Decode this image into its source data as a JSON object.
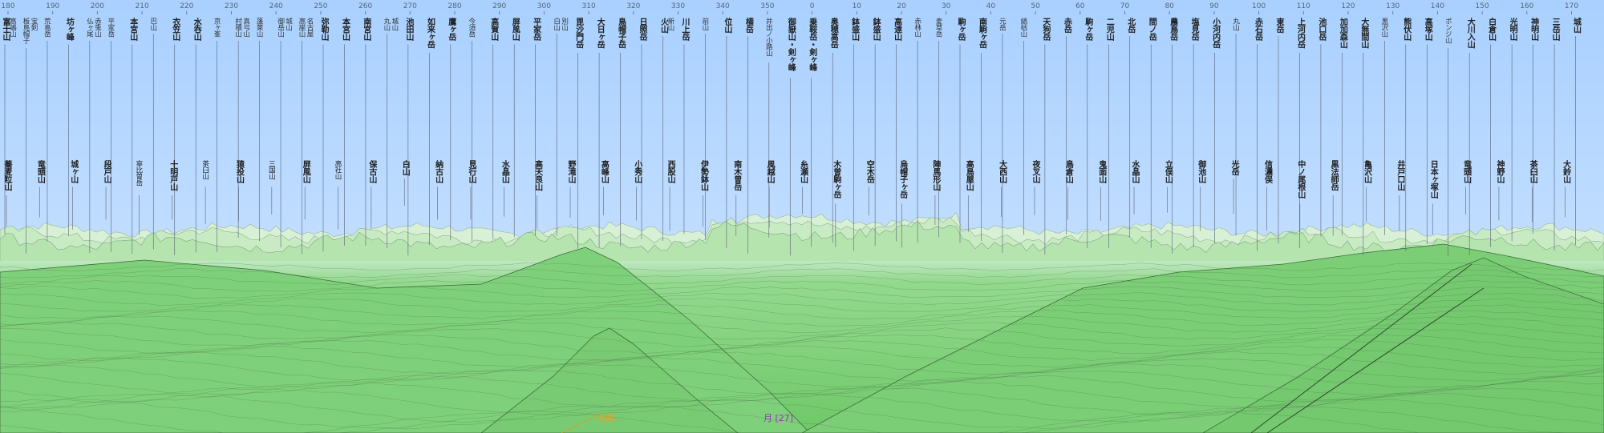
{
  "compass": {
    "ticks": [
      "180",
      "190",
      "200",
      "210",
      "220",
      "230",
      "240",
      "250",
      "260",
      "270",
      "280",
      "290",
      "300",
      "310",
      "320",
      "330",
      "340",
      "350",
      "0",
      "10",
      "20",
      "30",
      "40",
      "50",
      "60",
      "70",
      "80",
      "90",
      "100",
      "110",
      "120",
      "130",
      "140",
      "150",
      "160",
      "170"
    ]
  },
  "peaks_upper": [
    {
      "name": "富士山",
      "sub": "高嶋山",
      "bold": true
    },
    {
      "name": "板鳥帽子",
      "sub": "宝剣",
      "bold": false
    },
    {
      "name": "荒島岳",
      "sub": "",
      "bold": false
    },
    {
      "name": "坊ヶ峰",
      "sub": "",
      "bold": true
    },
    {
      "name": "仏ヶ尾",
      "sub": "赤兎山",
      "bold": false
    },
    {
      "name": "平家岳",
      "sub": "",
      "bold": false
    },
    {
      "name": "本宮山",
      "sub": "",
      "bold": true
    },
    {
      "name": "巴山",
      "sub": "",
      "bold": false
    },
    {
      "name": "衣笠山",
      "sub": "",
      "bold": true
    },
    {
      "name": "水呑山",
      "sub": "",
      "bold": true
    },
    {
      "name": "京ヶ峯",
      "sub": "",
      "bold": false
    },
    {
      "name": "村積山",
      "sub": "真弓山",
      "bold": false
    },
    {
      "name": "蓬萊山",
      "sub": "",
      "bold": false
    },
    {
      "name": "御岳山",
      "sub": "城山",
      "bold": false
    },
    {
      "name": "高座山",
      "sub": "名古屋",
      "bold": false
    },
    {
      "name": "弥勒山",
      "sub": "",
      "bold": true
    },
    {
      "name": "本宮山",
      "sub": "",
      "bold": true
    },
    {
      "name": "南宮山",
      "sub": "",
      "bold": true
    },
    {
      "name": "丸山",
      "sub": "城山",
      "bold": false
    },
    {
      "name": "池田山",
      "sub": "",
      "bold": true
    },
    {
      "name": "如来ヶ岳",
      "sub": "",
      "bold": true
    },
    {
      "name": "鷹ヶ岳",
      "sub": "",
      "bold": true
    },
    {
      "name": "今須岳",
      "sub": "",
      "bold": false
    },
    {
      "name": "高賀山",
      "sub": "",
      "bold": true
    },
    {
      "name": "屏風山",
      "sub": "",
      "bold": true
    },
    {
      "name": "平家岳",
      "sub": "",
      "bold": true
    },
    {
      "name": "白山",
      "sub": "別山",
      "bold": false
    },
    {
      "name": "毘沙門岳",
      "sub": "",
      "bold": true
    },
    {
      "name": "大日ヶ岳",
      "sub": "",
      "bold": true
    },
    {
      "name": "鳥帽子岳",
      "sub": "",
      "bold": true
    },
    {
      "name": "日照岳",
      "sub": "",
      "bold": true
    },
    {
      "name": "火山",
      "sub": "新山",
      "bold": true
    },
    {
      "name": "川上岳",
      "sub": "",
      "bold": true
    },
    {
      "name": "前山",
      "sub": "",
      "bold": false
    },
    {
      "name": "位山",
      "sub": "",
      "bold": true
    },
    {
      "name": "横岳",
      "sub": "",
      "bold": true
    },
    {
      "name": "井出ノ小路山",
      "sub": "",
      "bold": false
    },
    {
      "name": "御嶽山・剣ヶ峰",
      "sub": "",
      "bold": true
    },
    {
      "name": "乗鞍岳・剣ヶ峰",
      "sub": "",
      "bold": true
    },
    {
      "name": "奥穂高岳",
      "sub": "",
      "bold": true
    },
    {
      "name": "鉢盛山",
      "sub": "",
      "bold": true
    },
    {
      "name": "鉢盛山",
      "sub": "",
      "bold": true
    },
    {
      "name": "高遠山",
      "sub": "",
      "bold": true
    },
    {
      "name": "赤林山",
      "sub": "",
      "bold": false
    },
    {
      "name": "麦草岳",
      "sub": "",
      "bold": false
    },
    {
      "name": "駒ヶ岳",
      "sub": "",
      "bold": true
    },
    {
      "name": "南駒ヶ岳",
      "sub": "",
      "bold": true
    },
    {
      "name": "元岳",
      "sub": "",
      "bold": false
    },
    {
      "name": "縞枯山",
      "sub": "",
      "bold": false
    },
    {
      "name": "天狗岳",
      "sub": "",
      "bold": true
    },
    {
      "name": "赤岳",
      "sub": "",
      "bold": true
    },
    {
      "name": "駒ヶ岳",
      "sub": "",
      "bold": true
    },
    {
      "name": "二児山",
      "sub": "",
      "bold": true
    },
    {
      "name": "北岳",
      "sub": "",
      "bold": true
    },
    {
      "name": "間ノ岳",
      "sub": "",
      "bold": true
    },
    {
      "name": "農鳥岳",
      "sub": "",
      "bold": true
    },
    {
      "name": "塩見岳",
      "sub": "",
      "bold": true
    },
    {
      "name": "小河内岳",
      "sub": "",
      "bold": true
    },
    {
      "name": "丸山",
      "sub": "",
      "bold": false
    },
    {
      "name": "赤石岳",
      "sub": "",
      "bold": true
    },
    {
      "name": "東岳",
      "sub": "",
      "bold": true
    },
    {
      "name": "上河内岳",
      "sub": "",
      "bold": true
    },
    {
      "name": "池口岳",
      "sub": "",
      "bold": true
    },
    {
      "name": "加加森山",
      "sub": "",
      "bold": true
    },
    {
      "name": "大無間山",
      "sub": "",
      "bold": true
    },
    {
      "name": "黒沢山",
      "sub": "",
      "bold": false
    },
    {
      "name": "熊伏山",
      "sub": "",
      "bold": true
    },
    {
      "name": "高塚山",
      "sub": "",
      "bold": true
    },
    {
      "name": "ボンジ山",
      "sub": "",
      "bold": false
    },
    {
      "name": "大川入山",
      "sub": "",
      "bold": true
    },
    {
      "name": "白倉山",
      "sub": "",
      "bold": true
    },
    {
      "name": "光明山",
      "sub": "",
      "bold": true
    },
    {
      "name": "神明山",
      "sub": "",
      "bold": true
    },
    {
      "name": "三岳山",
      "sub": "",
      "bold": true
    },
    {
      "name": "城山",
      "sub": "",
      "bold": true
    }
  ],
  "peaks_lower": [
    {
      "name": "蕎麦粒山",
      "bold": true
    },
    {
      "name": "竜頭山",
      "bold": true
    },
    {
      "name": "城ヶ山",
      "bold": true
    },
    {
      "name": "段戸山",
      "bold": true
    },
    {
      "name": "寧比曽岳",
      "bold": false
    },
    {
      "name": "十明戸山",
      "bold": true
    },
    {
      "name": "茶臼山",
      "bold": false
    },
    {
      "name": "猿投山",
      "bold": true
    },
    {
      "name": "三国山",
      "bold": false
    },
    {
      "name": "屏風山",
      "bold": true
    },
    {
      "name": "高社山",
      "bold": false
    },
    {
      "name": "保古山",
      "bold": true
    },
    {
      "name": "白山",
      "bold": true
    },
    {
      "name": "納古山",
      "bold": true
    },
    {
      "name": "見行山",
      "bold": true
    },
    {
      "name": "水晶山",
      "bold": true
    },
    {
      "name": "高天良山",
      "bold": true
    },
    {
      "name": "野滝山",
      "bold": true
    },
    {
      "name": "高峰山",
      "bold": true
    },
    {
      "name": "小秀山",
      "bold": true
    },
    {
      "name": "西股山",
      "bold": true
    },
    {
      "name": "伊勢鉢山",
      "bold": true
    },
    {
      "name": "南木曽岳",
      "bold": true
    },
    {
      "name": "風越山",
      "bold": true
    },
    {
      "name": "糸瀬山",
      "bold": true
    },
    {
      "name": "木曽駒ヶ岳",
      "bold": true
    },
    {
      "name": "空木岳",
      "bold": true
    },
    {
      "name": "烏帽子ヶ岳",
      "bold": true
    },
    {
      "name": "陣馬形山",
      "bold": true
    },
    {
      "name": "高鳥屋山",
      "bold": true
    },
    {
      "name": "大西山",
      "bold": true
    },
    {
      "name": "夜叉山",
      "bold": true
    },
    {
      "name": "鳥倉山",
      "bold": true
    },
    {
      "name": "鬼面山",
      "bold": true
    },
    {
      "name": "水晶山",
      "bold": true
    },
    {
      "name": "立俣山",
      "bold": true
    },
    {
      "name": "御池山",
      "bold": true
    },
    {
      "name": "光岳",
      "bold": true
    },
    {
      "name": "信濃俣",
      "bold": true
    },
    {
      "name": "中ノ尾根山",
      "bold": true
    },
    {
      "name": "黒法師岳",
      "bold": true
    },
    {
      "name": "亀沢山",
      "bold": true
    },
    {
      "name": "井戸口山",
      "bold": true
    },
    {
      "name": "日本ヶ塚山",
      "bold": true
    },
    {
      "name": "竜頭山",
      "bold": true
    },
    {
      "name": "神野山",
      "bold": true
    },
    {
      "name": "茶臼山",
      "bold": true
    },
    {
      "name": "大鈴山",
      "bold": true
    }
  ],
  "markers": {
    "sun": {
      "label": "太陽",
      "color": "#e8a020"
    },
    "moon": {
      "label": "月 [27]",
      "color": "#9a30c0"
    }
  },
  "colors": {
    "sky_top": "#a9d0ff",
    "sky_bottom": "#d4e8ff",
    "ground_far": "#bfe8c0",
    "ground_near": "#6fc868"
  }
}
